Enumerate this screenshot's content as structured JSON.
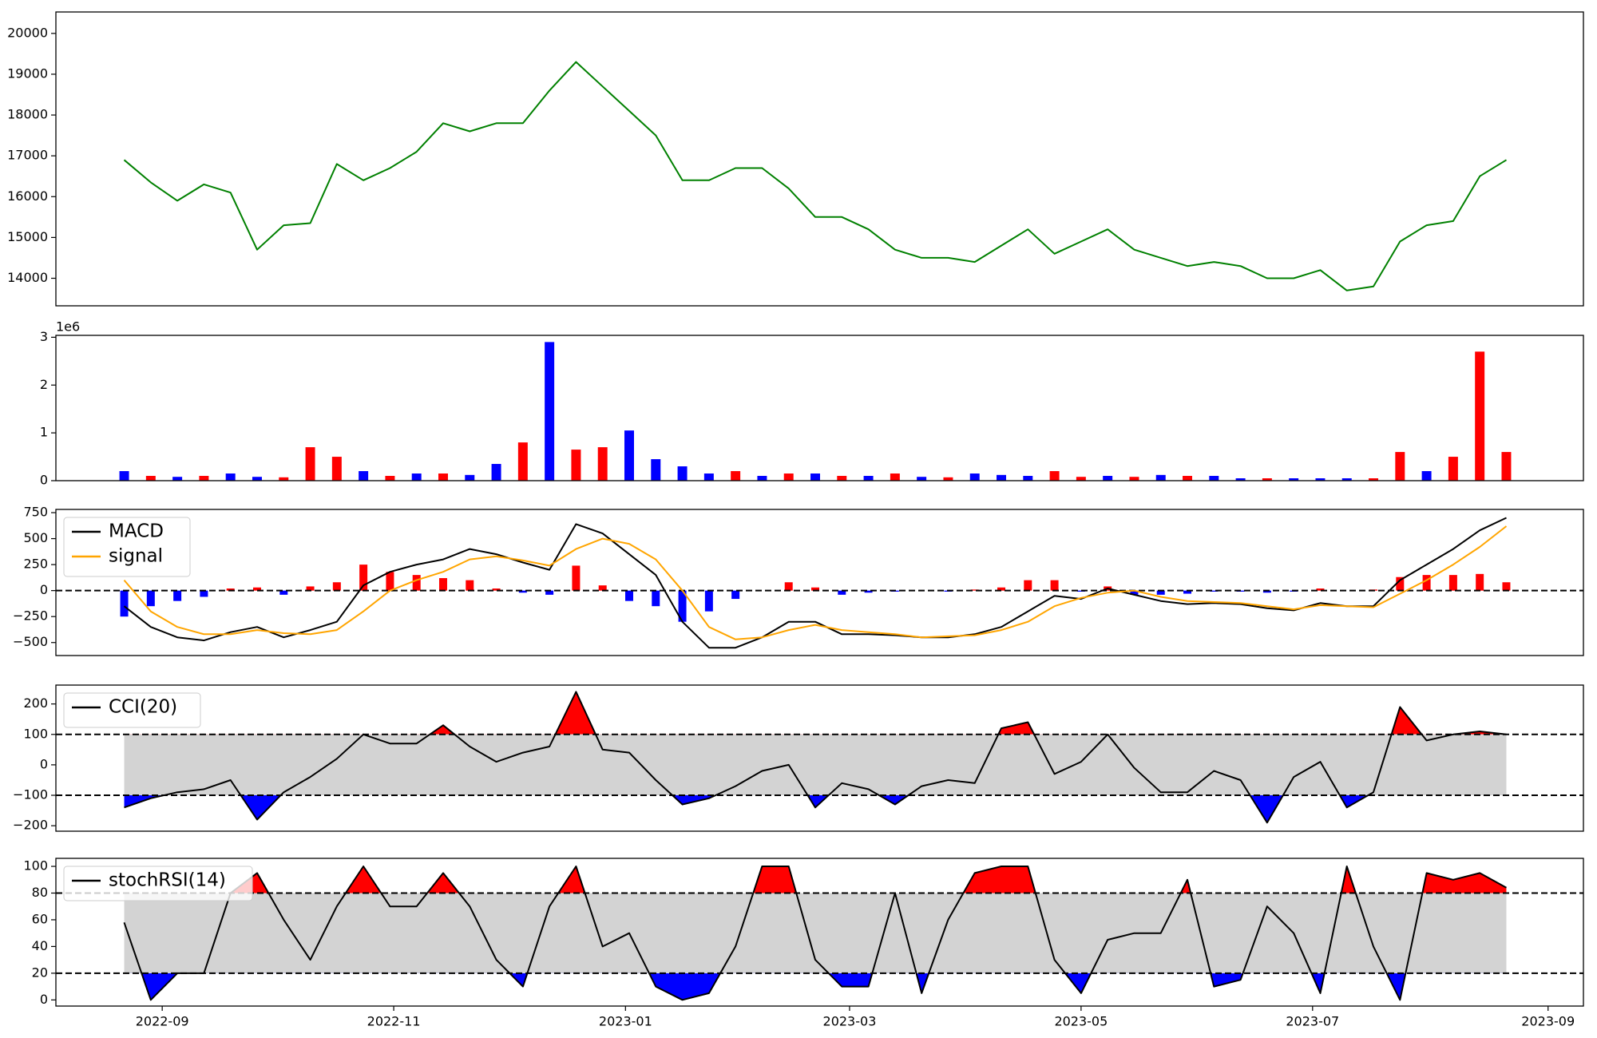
{
  "chart_data": [
    {
      "type": "line",
      "color": "#008000",
      "categories": [
        null,
        null,
        null,
        null,
        null,
        null,
        null,
        null,
        null,
        null,
        null,
        null,
        null,
        null,
        null,
        null,
        null,
        null,
        null,
        null,
        null,
        null,
        null,
        null,
        null,
        null,
        null,
        null,
        null,
        null,
        null,
        null,
        null,
        null,
        null,
        null,
        null,
        null,
        null,
        null,
        null,
        null,
        null,
        null,
        null,
        null,
        null,
        null,
        null,
        null,
        null,
        null,
        null
      ],
      "values": [
        16900,
        16350,
        15900,
        16300,
        16100,
        14700,
        15300,
        15350,
        16800,
        16400,
        16700,
        17100,
        17800,
        17600,
        17800,
        17800,
        18600,
        19300,
        18700,
        18100,
        17500,
        16400,
        16400,
        16700,
        16700,
        16200,
        15500,
        15500,
        15200,
        14700,
        14500,
        14500,
        14400,
        14800,
        15200,
        14600,
        14900,
        15200,
        14700,
        14500,
        14300,
        14400,
        14300,
        14000,
        14000,
        14200,
        13700,
        13800,
        14900,
        15300,
        15400,
        16500,
        16900
      ],
      "xlim": [
        -2.57,
        54.9
      ],
      "ylim": [
        13325,
        20525
      ],
      "yticks": [
        14000,
        15000,
        16000,
        17000,
        18000,
        19000,
        20000
      ]
    },
    {
      "type": "bar",
      "offset_text": "1e6",
      "categories": [
        null,
        null,
        null,
        null,
        null,
        null,
        null,
        null,
        null,
        null,
        null,
        null,
        null,
        null,
        null,
        null,
        null,
        null,
        null,
        null,
        null,
        null,
        null,
        null,
        null,
        null,
        null,
        null,
        null,
        null,
        null,
        null,
        null,
        null,
        null,
        null,
        null,
        null,
        null,
        null,
        null,
        null,
        null,
        null,
        null,
        null,
        null,
        null,
        null,
        null,
        null,
        null,
        null
      ],
      "values": [
        0.2,
        0.1,
        0.08,
        0.1,
        0.15,
        0.08,
        0.07,
        0.7,
        0.5,
        0.2,
        0.1,
        0.15,
        0.15,
        0.12,
        0.35,
        0.8,
        2.9,
        0.65,
        0.7,
        1.05,
        0.45,
        0.3,
        0.15,
        0.2,
        0.1,
        0.15,
        0.15,
        0.1,
        0.1,
        0.15,
        0.08,
        0.07,
        0.15,
        0.12,
        0.1,
        0.2,
        0.08,
        0.1,
        0.08,
        0.12,
        0.1,
        0.1,
        0.05,
        0.05,
        0.05,
        0.05,
        0.05,
        0.05,
        0.6,
        0.2,
        0.5,
        2.7,
        0.6
      ],
      "colors": [
        "blue",
        "red",
        "blue",
        "red",
        "blue",
        "blue",
        "red",
        "red",
        "red",
        "blue",
        "red",
        "blue",
        "red",
        "blue",
        "blue",
        "red",
        "blue",
        "red",
        "red",
        "blue",
        "blue",
        "blue",
        "blue",
        "red",
        "blue",
        "red",
        "blue",
        "red",
        "blue",
        "red",
        "blue",
        "red",
        "blue",
        "blue",
        "blue",
        "red",
        "red",
        "blue",
        "red",
        "blue",
        "red",
        "blue",
        "blue",
        "red",
        "blue",
        "blue",
        "blue",
        "red",
        "red",
        "blue",
        "red",
        "red",
        "red"
      ],
      "xlim": [
        -2.57,
        54.9
      ],
      "ylim": [
        0,
        3.04
      ],
      "yticks": [
        0,
        1,
        2,
        3
      ]
    },
    {
      "type": "combo",
      "hline": 0,
      "categories": [
        null,
        null,
        null,
        null,
        null,
        null,
        null,
        null,
        null,
        null,
        null,
        null,
        null,
        null,
        null,
        null,
        null,
        null,
        null,
        null,
        null,
        null,
        null,
        null,
        null,
        null,
        null,
        null,
        null,
        null,
        null,
        null,
        null,
        null,
        null,
        null,
        null,
        null,
        null,
        null,
        null,
        null,
        null,
        null,
        null,
        null,
        null,
        null,
        null,
        null,
        null,
        null,
        null
      ],
      "series": [
        {
          "name": "MACD",
          "color": "#000000",
          "values": [
            -150,
            -350,
            -450,
            -480,
            -400,
            -350,
            -450,
            -380,
            -300,
            50,
            180,
            250,
            300,
            400,
            350,
            270,
            200,
            640,
            550,
            350,
            150,
            -300,
            -550,
            -550,
            -450,
            -300,
            -300,
            -420,
            -420,
            -430,
            -450,
            -450,
            -420,
            -350,
            -200,
            -50,
            -80,
            20,
            -40,
            -100,
            -130,
            -120,
            -130,
            -170,
            -190,
            -120,
            -150,
            -150,
            100,
            250,
            400,
            580,
            700
          ]
        },
        {
          "name": "signal",
          "color": "#ffa500",
          "values": [
            100,
            -200,
            -350,
            -420,
            -420,
            -380,
            -410,
            -420,
            -380,
            -200,
            0,
            100,
            180,
            300,
            330,
            290,
            240,
            400,
            500,
            450,
            300,
            0,
            -350,
            -470,
            -450,
            -380,
            -330,
            -380,
            -400,
            -420,
            -450,
            -440,
            -430,
            -380,
            -300,
            -150,
            -70,
            -20,
            0,
            -60,
            -100,
            -110,
            -120,
            -150,
            -180,
            -140,
            -150,
            -160,
            -30,
            100,
            250,
            420,
            620
          ]
        }
      ],
      "histogram": {
        "up_color": "red",
        "down_color": "blue",
        "values": [
          -250,
          -150,
          -100,
          -60,
          20,
          30,
          -40,
          40,
          80,
          250,
          180,
          150,
          120,
          100,
          20,
          -20,
          -40,
          240,
          50,
          -100,
          -150,
          -300,
          -200,
          -80,
          0,
          80,
          30,
          -40,
          -20,
          -10,
          0,
          -10,
          10,
          30,
          100,
          100,
          -10,
          40,
          -40,
          -40,
          -30,
          -10,
          -10,
          -20,
          -10,
          20,
          0,
          10,
          130,
          150,
          150,
          160,
          80
        ]
      },
      "xlim": [
        -2.57,
        54.9
      ],
      "ylim": [
        -625,
        781
      ],
      "yticks": [
        {
          "value": -500,
          "label": "−500"
        },
        {
          "value": -250,
          "label": "−250"
        },
        0,
        250,
        500,
        750
      ]
    },
    {
      "type": "oscillator",
      "overbought": 100,
      "oversold": -100,
      "band_color": "#d3d3d3",
      "over_color": "red",
      "under_color": "blue",
      "categories": [
        null,
        null,
        null,
        null,
        null,
        null,
        null,
        null,
        null,
        null,
        null,
        null,
        null,
        null,
        null,
        null,
        null,
        null,
        null,
        null,
        null,
        null,
        null,
        null,
        null,
        null,
        null,
        null,
        null,
        null,
        null,
        null,
        null,
        null,
        null,
        null,
        null,
        null,
        null,
        null,
        null,
        null,
        null,
        null,
        null,
        null,
        null,
        null,
        null,
        null,
        null,
        null,
        null
      ],
      "series": [
        {
          "name": "CCI(20)",
          "color": "#000000",
          "values": [
            -140,
            -110,
            -90,
            -80,
            -50,
            -180,
            -90,
            -40,
            20,
            100,
            70,
            70,
            130,
            60,
            10,
            40,
            60,
            240,
            50,
            40,
            -50,
            -130,
            -110,
            -70,
            -20,
            0,
            -140,
            -60,
            -80,
            -130,
            -70,
            -50,
            -60,
            120,
            140,
            -30,
            10,
            100,
            -10,
            -90,
            -90,
            -20,
            -50,
            -190,
            -40,
            10,
            -140,
            -90,
            190,
            80,
            100,
            110,
            100
          ]
        }
      ],
      "xlim": [
        -2.57,
        54.9
      ],
      "ylim": [
        -218,
        262
      ],
      "yticks": [
        {
          "value": -200,
          "label": "−200"
        },
        {
          "value": -100,
          "label": "−100"
        },
        0,
        100,
        200
      ]
    },
    {
      "type": "oscillator",
      "overbought": 80,
      "oversold": 20,
      "band_color": "#d3d3d3",
      "over_color": "red",
      "under_color": "blue",
      "categories": [
        null,
        null,
        null,
        null,
        null,
        null,
        null,
        null,
        null,
        null,
        null,
        null,
        null,
        null,
        null,
        null,
        null,
        null,
        null,
        null,
        null,
        null,
        null,
        null,
        null,
        null,
        null,
        null,
        null,
        null,
        null,
        null,
        null,
        null,
        null,
        null,
        null,
        null,
        null,
        null,
        null,
        null,
        null,
        null,
        null,
        null,
        null,
        null,
        null,
        null,
        null,
        null,
        null
      ],
      "series": [
        {
          "name": "stochRSI(14)",
          "color": "#000000",
          "values": [
            58,
            0,
            20,
            20,
            80,
            95,
            60,
            30,
            70,
            100,
            70,
            70,
            95,
            70,
            30,
            10,
            70,
            100,
            40,
            50,
            10,
            0,
            5,
            40,
            100,
            100,
            30,
            10,
            10,
            80,
            5,
            60,
            95,
            100,
            100,
            30,
            5,
            45,
            50,
            50,
            90,
            10,
            15,
            70,
            50,
            5,
            100,
            40,
            0,
            95,
            90,
            95,
            84
          ]
        }
      ],
      "xlim": [
        -2.57,
        54.9
      ],
      "ylim": [
        -4.6,
        106
      ],
      "yticks": [
        0,
        20,
        40,
        60,
        80,
        100
      ],
      "xticks": [
        {
          "value": 1.43,
          "label": "2022-09"
        },
        {
          "value": 10.14,
          "label": "2022-11"
        },
        {
          "value": 18.86,
          "label": "2023-01"
        },
        {
          "value": 27.29,
          "label": "2023-03"
        },
        {
          "value": 36,
          "label": "2023-05"
        },
        {
          "value": 44.71,
          "label": "2023-07"
        },
        {
          "value": 53.57,
          "label": "2023-09"
        }
      ]
    }
  ]
}
